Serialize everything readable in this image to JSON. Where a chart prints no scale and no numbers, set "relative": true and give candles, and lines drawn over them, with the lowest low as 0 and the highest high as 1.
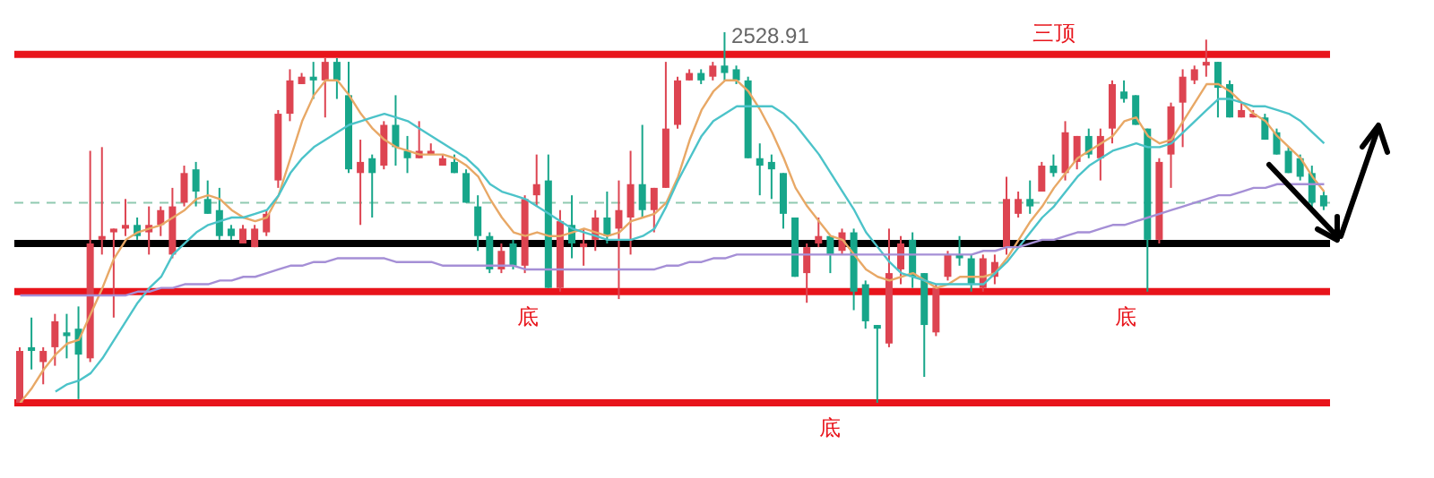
{
  "chart_data": {
    "type": "candlestick",
    "relative": true,
    "categories": [
      null,
      null,
      null,
      null,
      null,
      null,
      null,
      null,
      null,
      null,
      null,
      null,
      null,
      null,
      null,
      null,
      null,
      null,
      null,
      null,
      null,
      null,
      null,
      null,
      null,
      null,
      null,
      null,
      null,
      null,
      null,
      null,
      null,
      null,
      null,
      null,
      null,
      null,
      null,
      null,
      null,
      null,
      null,
      null,
      null,
      null,
      null,
      null,
      null,
      null,
      null,
      null,
      null,
      null,
      null,
      null,
      null,
      null,
      null,
      null,
      null,
      null,
      null,
      null,
      null,
      null,
      null,
      null,
      null,
      null,
      null,
      null,
      null,
      null,
      null,
      null,
      null,
      null,
      null,
      null,
      null,
      null,
      null,
      null,
      null,
      null,
      null,
      null,
      null,
      null,
      null,
      null,
      null,
      null,
      null,
      null,
      null,
      null,
      null,
      null,
      null,
      null,
      null,
      null,
      null,
      null,
      null,
      null,
      null,
      null,
      null,
      null
    ],
    "ohlc": [
      [
        0,
        0.15,
        0,
        0.14
      ],
      [
        0.15,
        0.23,
        0.09,
        0.14
      ],
      [
        0.11,
        0.15,
        0.05,
        0.14
      ],
      [
        0.15,
        0.24,
        0.1,
        0.22
      ],
      [
        0.19,
        0.24,
        0.12,
        0.18
      ],
      [
        0.2,
        0.26,
        0.01,
        0.13
      ],
      [
        0.12,
        0.68,
        0.11,
        0.43
      ],
      [
        0.44,
        0.69,
        0.4,
        0.45
      ],
      [
        0.46,
        0.47,
        0.23,
        0.47
      ],
      [
        0.47,
        0.55,
        0.45,
        0.48
      ],
      [
        0.48,
        0.5,
        0.44,
        0.45
      ],
      [
        0.46,
        0.53,
        0.4,
        0.48
      ],
      [
        0.48,
        0.53,
        0.45,
        0.52
      ],
      [
        0.4,
        0.58,
        0.39,
        0.53
      ],
      [
        0.54,
        0.64,
        0.53,
        0.62
      ],
      [
        0.63,
        0.65,
        0.53,
        0.57
      ],
      [
        0.55,
        0.6,
        0.51,
        0.51
      ],
      [
        0.52,
        0.58,
        0.44,
        0.45
      ],
      [
        0.47,
        0.48,
        0.44,
        0.45
      ],
      [
        0.43,
        0.48,
        0.43,
        0.47
      ],
      [
        0.42,
        0.48,
        0.42,
        0.47
      ],
      [
        0.46,
        0.52,
        0.45,
        0.51
      ],
      [
        0.6,
        0.79,
        0.58,
        0.78
      ],
      [
        0.78,
        0.9,
        0.76,
        0.87
      ],
      [
        0.86,
        0.89,
        0.86,
        0.88
      ],
      [
        0.88,
        0.92,
        0.82,
        0.87
      ],
      [
        0.87,
        0.93,
        0.77,
        0.92
      ],
      [
        0.92,
        0.93,
        0.82,
        0.87
      ],
      [
        0.83,
        0.92,
        0.62,
        0.63
      ],
      [
        0.62,
        0.71,
        0.48,
        0.65
      ],
      [
        0.66,
        0.67,
        0.5,
        0.62
      ],
      [
        0.64,
        0.76,
        0.63,
        0.75
      ],
      [
        0.75,
        0.83,
        0.64,
        0.69
      ],
      [
        0.68,
        0.72,
        0.62,
        0.66
      ],
      [
        0.66,
        0.76,
        0.66,
        0.68
      ],
      [
        0.67,
        0.7,
        0.67,
        0.68
      ],
      [
        0.64,
        0.67,
        0.64,
        0.66
      ],
      [
        0.65,
        0.67,
        0.62,
        0.62
      ],
      [
        0.62,
        0.63,
        0.54,
        0.54
      ],
      [
        0.53,
        0.56,
        0.41,
        0.45
      ],
      [
        0.45,
        0.46,
        0.35,
        0.36
      ],
      [
        0.36,
        0.43,
        0.35,
        0.41
      ],
      [
        0.43,
        0.44,
        0.36,
        0.37
      ],
      [
        0.37,
        0.56,
        0.35,
        0.55
      ],
      [
        0.56,
        0.67,
        0.53,
        0.59
      ],
      [
        0.6,
        0.67,
        0.31,
        0.31
      ],
      [
        0.31,
        0.52,
        0.3,
        0.49
      ],
      [
        0.48,
        0.56,
        0.39,
        0.43
      ],
      [
        0.42,
        0.47,
        0.37,
        0.43
      ],
      [
        0.44,
        0.52,
        0.41,
        0.5
      ],
      [
        0.5,
        0.57,
        0.43,
        0.45
      ],
      [
        0.47,
        0.6,
        0.28,
        0.52
      ],
      [
        0.5,
        0.68,
        0.4,
        0.59
      ],
      [
        0.59,
        0.75,
        0.5,
        0.52
      ],
      [
        0.52,
        0.58,
        0.46,
        0.58
      ],
      [
        0.58,
        0.92,
        0.58,
        0.74
      ],
      [
        0.75,
        0.88,
        0.74,
        0.87
      ],
      [
        0.87,
        0.9,
        0.87,
        0.89
      ],
      [
        0.89,
        0.9,
        0.86,
        0.87
      ],
      [
        0.88,
        0.92,
        0.87,
        0.91
      ],
      [
        0.91,
        1.0,
        0.87,
        0.89
      ],
      [
        0.9,
        0.91,
        0.86,
        0.87
      ],
      [
        0.87,
        0.88,
        0.66,
        0.66
      ],
      [
        0.66,
        0.7,
        0.56,
        0.64
      ],
      [
        0.65,
        0.67,
        0.55,
        0.63
      ],
      [
        0.62,
        0.62,
        0.47,
        0.51
      ],
      [
        0.5,
        0.5,
        0.34,
        0.34
      ],
      [
        0.35,
        0.43,
        0.27,
        0.42
      ],
      [
        0.43,
        0.5,
        0.42,
        0.45
      ],
      [
        0.45,
        0.45,
        0.35,
        0.4
      ],
      [
        0.41,
        0.47,
        0.4,
        0.46
      ],
      [
        0.46,
        0.47,
        0.25,
        0.3
      ],
      [
        0.32,
        0.33,
        0.2,
        0.22
      ],
      [
        0.21,
        0.21,
        0,
        0.2
      ],
      [
        0.16,
        0.47,
        0.15,
        0.35
      ],
      [
        0.36,
        0.45,
        0.32,
        0.43
      ],
      [
        0.44,
        0.46,
        0.31,
        0.34
      ],
      [
        0.35,
        0.35,
        0.07,
        0.21
      ],
      [
        0.19,
        0.32,
        0.18,
        0.31
      ],
      [
        0.34,
        0.41,
        0.33,
        0.4
      ],
      [
        0.4,
        0.45,
        0.37,
        0.39
      ],
      [
        0.39,
        0.4,
        0.3,
        0.32
      ],
      [
        0.31,
        0.4,
        0.3,
        0.39
      ],
      [
        0.34,
        0.4,
        0.32,
        0.38
      ],
      [
        0.42,
        0.61,
        0.4,
        0.55
      ],
      [
        0.51,
        0.57,
        0.5,
        0.55
      ],
      [
        0.55,
        0.6,
        0.51,
        0.53
      ],
      [
        0.57,
        0.65,
        0.57,
        0.64
      ],
      [
        0.64,
        0.67,
        0.61,
        0.62
      ],
      [
        0.62,
        0.76,
        0.6,
        0.73
      ],
      [
        0.65,
        0.72,
        0.63,
        0.72
      ],
      [
        0.72,
        0.74,
        0.66,
        0.67
      ],
      [
        0.66,
        0.74,
        0.6,
        0.72
      ],
      [
        0.74,
        0.87,
        0.7,
        0.86
      ],
      [
        0.84,
        0.87,
        0.81,
        0.82
      ],
      [
        0.83,
        0.83,
        0.75,
        0.75
      ],
      [
        0.74,
        0.74,
        0.3,
        0.44
      ],
      [
        0.44,
        0.66,
        0.43,
        0.65
      ],
      [
        0.67,
        0.81,
        0.58,
        0.8
      ],
      [
        0.81,
        0.9,
        0.69,
        0.88
      ],
      [
        0.87,
        0.91,
        0.86,
        0.9
      ],
      [
        0.91,
        0.98,
        0.88,
        0.92
      ],
      [
        0.92,
        0.92,
        0.77,
        0.85
      ],
      [
        0.86,
        0.87,
        0.77,
        0.77
      ],
      [
        0.77,
        0.81,
        0.77,
        0.79
      ],
      [
        0.77,
        0.79,
        0.77,
        0.78
      ],
      [
        0.77,
        0.78,
        0.71,
        0.71
      ],
      [
        0.73,
        0.74,
        0.67,
        0.67
      ],
      [
        0.68,
        0.69,
        0.62,
        0.62
      ],
      [
        0.66,
        0.67,
        0.6,
        0.61
      ],
      [
        0.62,
        0.64,
        0.52,
        0.54
      ],
      [
        0.56,
        0.57,
        0.52,
        0.53
      ]
    ],
    "series": [
      {
        "type": "line",
        "color": "#e8a866",
        "values": [
          0,
          0.04,
          0.09,
          0.13,
          0.16,
          0.17,
          0.24,
          0.31,
          0.39,
          0.44,
          0.46,
          0.47,
          0.48,
          0.5,
          0.52,
          0.55,
          0.56,
          0.55,
          0.52,
          0.5,
          0.49,
          0.5,
          0.56,
          0.66,
          0.76,
          0.83,
          0.87,
          0.87,
          0.83,
          0.78,
          0.74,
          0.71,
          0.69,
          0.68,
          0.67,
          0.67,
          0.67,
          0.66,
          0.64,
          0.61,
          0.55,
          0.5,
          0.46,
          0.45,
          0.46,
          0.45,
          0.45,
          0.46,
          0.47,
          0.46,
          0.45,
          0.46,
          0.49,
          0.5,
          0.51,
          0.54,
          0.61,
          0.71,
          0.79,
          0.84,
          0.87,
          0.87,
          0.84,
          0.79,
          0.73,
          0.66,
          0.58,
          0.53,
          0.49,
          0.45,
          0.44,
          0.4,
          0.36,
          0.34,
          0.33,
          0.34,
          0.35,
          0.33,
          0.31,
          0.32,
          0.34,
          0.34,
          0.34,
          0.35,
          0.39,
          0.44,
          0.49,
          0.53,
          0.58,
          0.62,
          0.66,
          0.68,
          0.7,
          0.72,
          0.76,
          0.77,
          0.72,
          0.7,
          0.71,
          0.76,
          0.81,
          0.86,
          0.86,
          0.84,
          0.81,
          0.78,
          0.76,
          0.72,
          0.69,
          0.66,
          0.61,
          0.57
        ]
      },
      {
        "type": "line",
        "color": "#4cc3c9",
        "values": [
          null,
          null,
          null,
          0.03,
          0.05,
          0.06,
          0.08,
          0.12,
          0.17,
          0.22,
          0.27,
          0.31,
          0.34,
          0.4,
          0.43,
          0.46,
          0.48,
          0.49,
          0.5,
          0.5,
          0.51,
          0.52,
          0.56,
          0.62,
          0.66,
          0.69,
          0.71,
          0.73,
          0.75,
          0.76,
          0.77,
          0.78,
          0.77,
          0.76,
          0.74,
          0.72,
          0.7,
          0.68,
          0.66,
          0.63,
          0.59,
          0.57,
          0.56,
          0.55,
          0.53,
          0.51,
          0.49,
          0.47,
          0.46,
          0.45,
          0.44,
          0.44,
          0.44,
          0.45,
          0.47,
          0.53,
          0.6,
          0.66,
          0.72,
          0.76,
          0.78,
          0.8,
          0.8,
          0.8,
          0.8,
          0.78,
          0.75,
          0.71,
          0.67,
          0.62,
          0.57,
          0.52,
          0.46,
          0.42,
          0.38,
          0.35,
          0.34,
          0.33,
          0.32,
          0.32,
          0.32,
          0.32,
          0.32,
          0.35,
          0.38,
          0.42,
          0.46,
          0.5,
          0.53,
          0.57,
          0.61,
          0.64,
          0.66,
          0.68,
          0.69,
          0.7,
          0.69,
          0.69,
          0.7,
          0.73,
          0.76,
          0.79,
          0.82,
          0.82,
          0.81,
          0.8,
          0.8,
          0.79,
          0.78,
          0.76,
          0.73,
          0.7
        ]
      },
      {
        "type": "line",
        "color": "#a58fd6",
        "values": [
          0.29,
          0.29,
          0.29,
          0.29,
          0.29,
          0.29,
          0.29,
          0.29,
          0.29,
          0.29,
          0.3,
          0.3,
          0.31,
          0.31,
          0.32,
          0.32,
          0.32,
          0.33,
          0.33,
          0.34,
          0.34,
          0.35,
          0.36,
          0.37,
          0.37,
          0.38,
          0.38,
          0.39,
          0.39,
          0.39,
          0.39,
          0.39,
          0.38,
          0.38,
          0.38,
          0.38,
          0.37,
          0.37,
          0.37,
          0.37,
          0.37,
          0.37,
          0.37,
          0.36,
          0.36,
          0.36,
          0.36,
          0.36,
          0.36,
          0.36,
          0.36,
          0.36,
          0.36,
          0.36,
          0.36,
          0.37,
          0.37,
          0.38,
          0.38,
          0.39,
          0.39,
          0.4,
          0.4,
          0.4,
          0.4,
          0.4,
          0.4,
          0.4,
          0.4,
          0.4,
          0.4,
          0.4,
          0.4,
          0.4,
          0.4,
          0.4,
          0.4,
          0.4,
          0.4,
          0.4,
          0.4,
          0.4,
          0.41,
          0.41,
          0.42,
          0.42,
          0.43,
          0.44,
          0.44,
          0.45,
          0.46,
          0.46,
          0.47,
          0.48,
          0.48,
          0.49,
          0.5,
          0.51,
          0.52,
          0.53,
          0.54,
          0.55,
          0.56,
          0.56,
          0.57,
          0.58,
          0.58,
          0.59,
          0.59,
          0.59,
          0.59,
          0.59
        ]
      }
    ],
    "ref_lines": [
      {
        "axis": "y",
        "value": 0.94,
        "label": "三顶",
        "color": "#e8141b"
      },
      {
        "axis": "y",
        "value": 0.3,
        "label": "底",
        "color": "#e8141b"
      },
      {
        "axis": "y",
        "value": 0,
        "label": "底",
        "color": "#e8141b"
      },
      {
        "axis": "y",
        "value": 0.43,
        "color": "#000000"
      },
      {
        "axis": "y",
        "value": 0.54,
        "color": "#8fc9b0",
        "line_style": "dashed"
      }
    ],
    "annotations": [
      "2528.91",
      "底"
    ]
  }
}
